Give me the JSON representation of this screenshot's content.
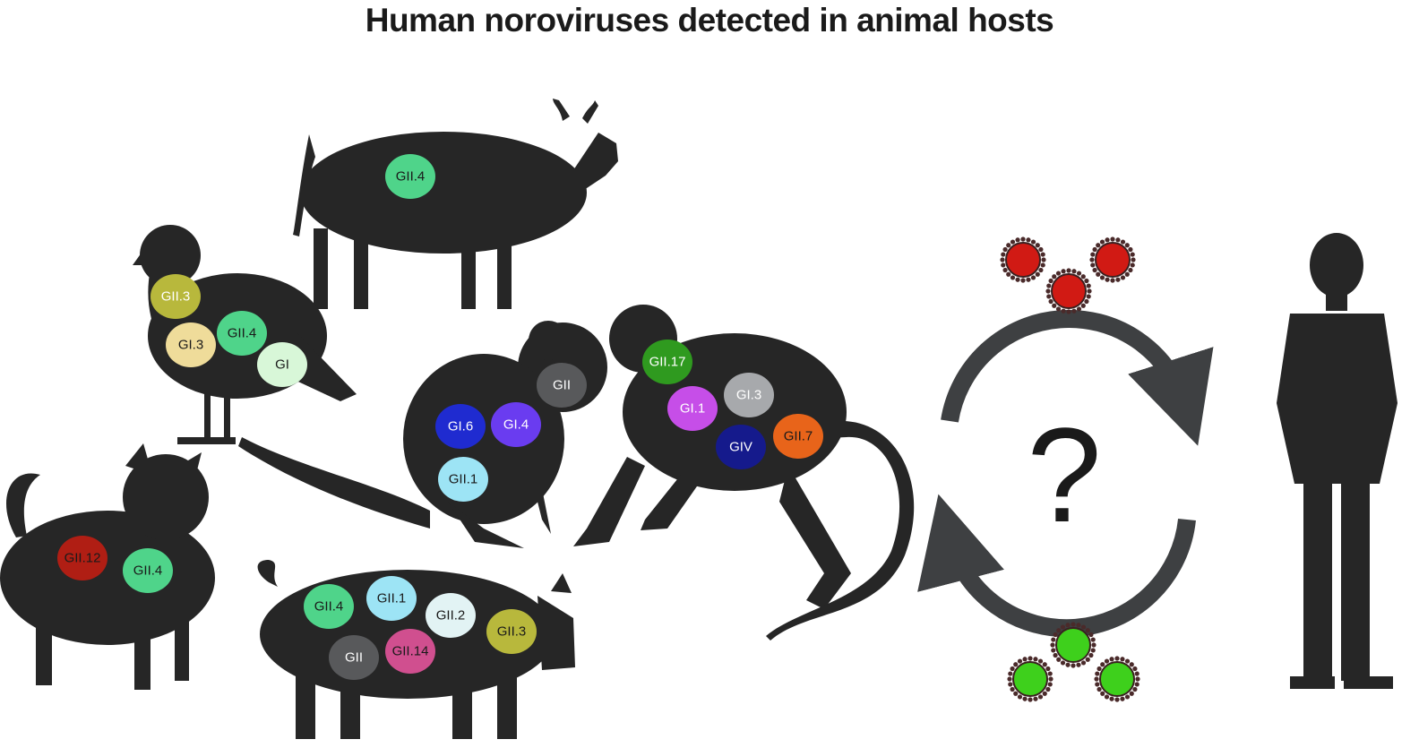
{
  "title": "Human noroviruses detected in animal hosts",
  "silhouette_color": "#262626",
  "hosts": {
    "cow": {
      "icon": "cow-icon",
      "genotypes": [
        {
          "label": "GII.4",
          "color": "#4fd48a",
          "text": "#1a1a1a"
        }
      ]
    },
    "gull": {
      "icon": "gull-icon",
      "genotypes": [
        {
          "label": "GII.3",
          "color": "#b8b83c",
          "text": "#ffffff"
        },
        {
          "label": "GII.4",
          "color": "#4fd48a",
          "text": "#1a1a1a"
        },
        {
          "label": "GI.3",
          "color": "#efdc9a",
          "text": "#1a1a1a"
        },
        {
          "label": "GI",
          "color": "#d8f7d8",
          "text": "#1a1a1a"
        }
      ]
    },
    "tamarin": {
      "icon": "tamarin-icon",
      "genotypes": [
        {
          "label": "GII",
          "color": "#58595b",
          "text": "#ffffff"
        },
        {
          "label": "GI.6",
          "color": "#1f2bd0",
          "text": "#ffffff"
        },
        {
          "label": "GI.4",
          "color": "#6a3cf0",
          "text": "#ffffff"
        },
        {
          "label": "GII.1",
          "color": "#9de4f5",
          "text": "#1a1a1a"
        }
      ]
    },
    "monkey": {
      "icon": "monkey-icon",
      "genotypes": [
        {
          "label": "GII.17",
          "color": "#2f9a1f",
          "text": "#ffffff"
        },
        {
          "label": "GI.1",
          "color": "#c64ee8",
          "text": "#ffffff"
        },
        {
          "label": "GI.3",
          "color": "#a7a9ac",
          "text": "#ffffff"
        },
        {
          "label": "GIV",
          "color": "#151a8c",
          "text": "#ffffff"
        },
        {
          "label": "GII.7",
          "color": "#e8641a",
          "text": "#1a1a1a"
        }
      ]
    },
    "dog": {
      "icon": "dog-icon",
      "genotypes": [
        {
          "label": "GII.12",
          "color": "#b01e14",
          "text": "#1a1a1a"
        },
        {
          "label": "GII.4",
          "color": "#4fd48a",
          "text": "#1a1a1a"
        }
      ]
    },
    "pig": {
      "icon": "pig-icon",
      "genotypes": [
        {
          "label": "GII.4",
          "color": "#4fd48a",
          "text": "#1a1a1a"
        },
        {
          "label": "GII.1",
          "color": "#9de4f5",
          "text": "#1a1a1a"
        },
        {
          "label": "GII.2",
          "color": "#e2f3f4",
          "text": "#1a1a1a"
        },
        {
          "label": "GII.3",
          "color": "#b8b83c",
          "text": "#1a1a1a"
        },
        {
          "label": "GII",
          "color": "#58595b",
          "text": "#ffffff"
        },
        {
          "label": "GII.14",
          "color": "#d04f8f",
          "text": "#1a1a1a"
        }
      ]
    }
  },
  "transmission": {
    "question": "?",
    "arrow_color": "#3e4042",
    "virus_red": "#d11a14",
    "virus_green": "#3ed01c",
    "icon": "question-mark-icon"
  },
  "human": {
    "icon": "human-icon"
  }
}
